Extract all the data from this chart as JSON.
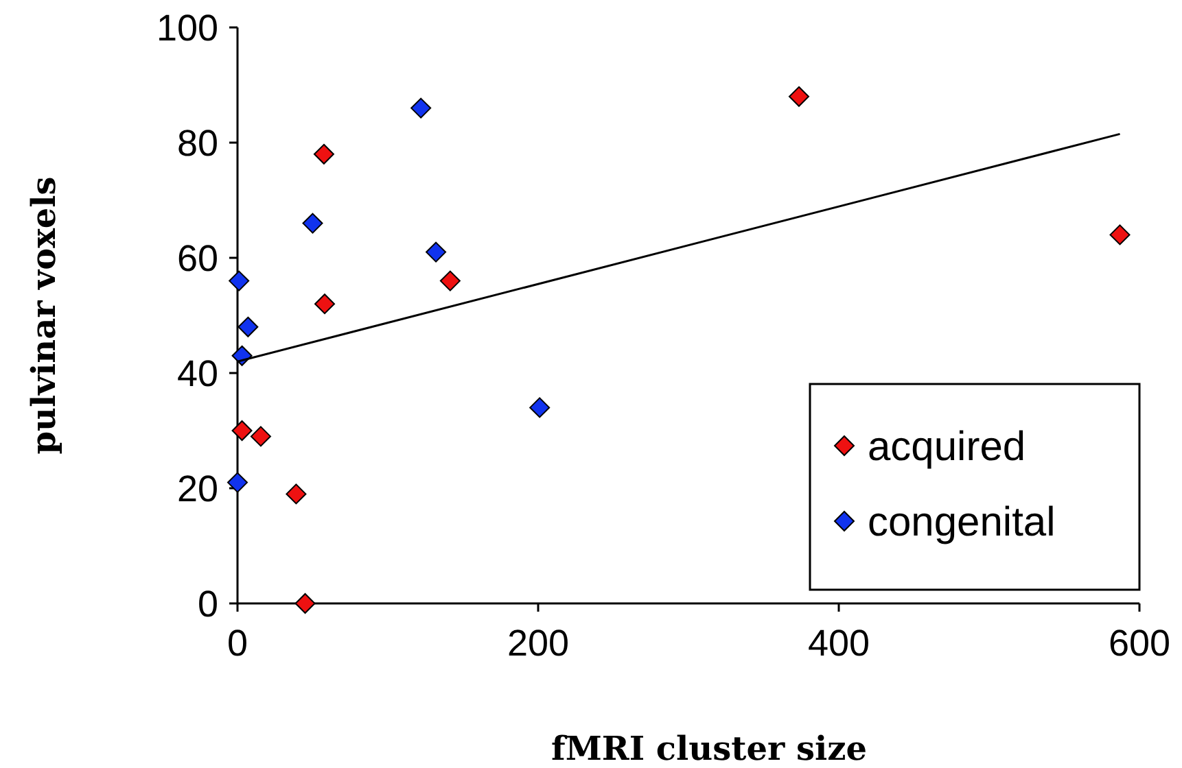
{
  "chart_data": {
    "type": "scatter",
    "xlabel": "fMRI cluster size",
    "ylabel": "pulvinar voxels",
    "xlim": [
      0,
      600
    ],
    "ylim": [
      0,
      100
    ],
    "xticks": [
      0,
      200,
      400,
      600
    ],
    "yticks": [
      0,
      20,
      40,
      60,
      80,
      100
    ],
    "legend": "bottom right",
    "grid": false,
    "series": [
      {
        "name": "acquired",
        "color": "#ee1111",
        "marker": "diamond",
        "x": [
          57.5,
          58,
          141.5,
          373.5,
          587,
          3,
          15.5,
          39,
          45
        ],
        "values": [
          78,
          52,
          56,
          88,
          64,
          30,
          29,
          19,
          0
        ]
      },
      {
        "name": "congenital",
        "color": "#1133ee",
        "marker": "diamond",
        "x": [
          122,
          50,
          132,
          1,
          7,
          3,
          0,
          201
        ],
        "values": [
          86,
          66,
          61,
          56,
          48,
          43,
          21,
          34
        ]
      },
      {
        "type": "line",
        "color": "#000000",
        "marker": "none",
        "x": [
          0,
          587
        ],
        "values": [
          42,
          81.5
        ]
      }
    ]
  }
}
